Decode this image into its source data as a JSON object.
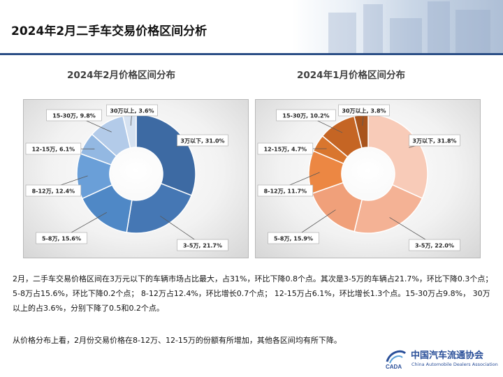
{
  "page": {
    "title": "2024年2月二手车交易价格区间分析"
  },
  "charts_meta": {
    "left_title": "2024年2月价格区间分布",
    "right_title": "2024年1月价格区间分布"
  },
  "chart_data": [
    {
      "type": "pie",
      "variant": "donut",
      "title": "2024年2月价格区间分布",
      "categories": [
        "3万以下",
        "3-5万",
        "5-8万",
        "8-12万",
        "12-15万",
        "15-30万",
        "30万以上"
      ],
      "values": [
        31.0,
        21.7,
        15.6,
        12.4,
        6.1,
        9.8,
        3.6
      ],
      "labels": [
        "3万以下, 31.0%",
        "3-5万, 21.7%",
        "5-8万, 15.6%",
        "8-12万, 12.4%",
        "12-15万, 6.1%",
        "15-30万, 9.8%",
        "30万以上, 3.6%"
      ],
      "colors": [
        "#3d6aa3",
        "#4577b4",
        "#4f88c6",
        "#6a9fd8",
        "#93b8e2",
        "#b3cbe9",
        "#d6e2f1"
      ]
    },
    {
      "type": "pie",
      "variant": "donut",
      "title": "2024年1月价格区间分布",
      "categories": [
        "3万以下",
        "3-5万",
        "5-8万",
        "8-12万",
        "12-15万",
        "15-30万",
        "30万以上"
      ],
      "values": [
        31.8,
        22.0,
        15.9,
        11.7,
        4.7,
        10.2,
        3.8
      ],
      "labels": [
        "3万以下, 31.8%",
        "3-5万, 22.0%",
        "5-8万, 15.9%",
        "8-12万, 11.7%",
        "12-15万, 4.7%",
        "15-30万, 10.2%",
        "30万以上, 3.8%"
      ],
      "colors": [
        "#f8cbb8",
        "#f4b295",
        "#f0a07a",
        "#ec8743",
        "#d9762e",
        "#c56524",
        "#a9541c"
      ]
    }
  ],
  "text": {
    "paragraph1": "2月，二手车交易价格区间在3万元以下的车辆市场占比最大，占31%，环比下降0.8个点。其次是3-5万的车辆占21.7%，环比下降0.3个点； 5-8万占15.6%，环比下降0.2个点； 8-12万占12.4%，环比增长0.7个点； 12-15万占6.1%，环比增长1.3个点。15-30万占9.8%， 30万以上的占3.6%，分别下降了0.5和0.2个点。",
    "paragraph2": "从价格分布上看，2月份交易价格在8-12万、12-15万的份额有所增加，其他各区间均有所下降。"
  },
  "logo": {
    "name_cn": "中国汽车流通协会",
    "name_en": "China Automobile Dealers Association",
    "mark_text": "CADA"
  },
  "colors": {
    "accent": "#2c4f86",
    "logo": "#2a4f99"
  }
}
